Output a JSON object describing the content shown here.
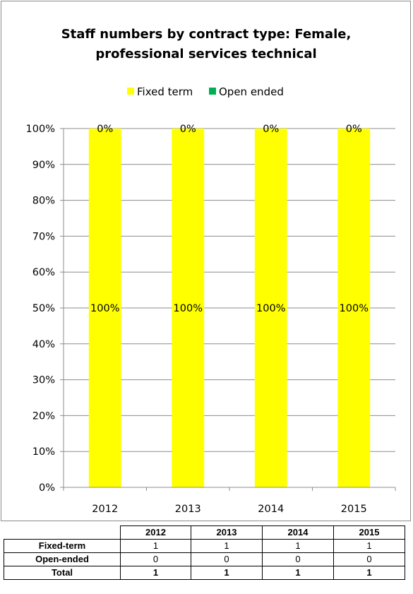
{
  "chart_data": {
    "type": "bar",
    "stacked": "percent",
    "title_lines": [
      "Staff numbers by contract type: Female,",
      "professional services technical"
    ],
    "categories": [
      "2012",
      "2013",
      "2014",
      "2015"
    ],
    "series": [
      {
        "name": "Fixed term",
        "color": "#ffff00",
        "values": [
          100,
          100,
          100,
          100
        ],
        "labels": [
          "100%",
          "100%",
          "100%",
          "100%"
        ]
      },
      {
        "name": "Open ended",
        "color": "#00b050",
        "values": [
          0,
          0,
          0,
          0
        ],
        "labels": [
          "0%",
          "0%",
          "0%",
          "0%"
        ]
      }
    ],
    "ylim": [
      0,
      100
    ],
    "y_ticks": [
      "0%",
      "10%",
      "20%",
      "30%",
      "40%",
      "50%",
      "60%",
      "70%",
      "80%",
      "90%",
      "100%"
    ],
    "grid": true,
    "legend_position": "top",
    "xlabel": "",
    "ylabel": ""
  },
  "table": {
    "columns": [
      "2012",
      "2013",
      "2014",
      "2015"
    ],
    "rows": [
      {
        "label": "Fixed-term",
        "values": [
          "1",
          "1",
          "1",
          "1"
        ]
      },
      {
        "label": "Open-ended",
        "values": [
          "0",
          "0",
          "0",
          "0"
        ]
      },
      {
        "label": "Total",
        "values": [
          "1",
          "1",
          "1",
          "1"
        ]
      }
    ]
  }
}
